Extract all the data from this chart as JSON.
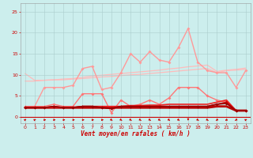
{
  "background_color": "#cceeed",
  "grid_color": "#aacccc",
  "xlabel": "Vent moyen/en rafales ( km/h )",
  "tick_color": "#cc0000",
  "yticks": [
    0,
    5,
    10,
    15,
    20,
    25
  ],
  "xticks": [
    0,
    1,
    2,
    3,
    4,
    5,
    6,
    7,
    8,
    9,
    10,
    11,
    12,
    13,
    14,
    15,
    16,
    17,
    18,
    19,
    20,
    21,
    22,
    23
  ],
  "xlim": [
    -0.5,
    23.5
  ],
  "ylim": [
    -1.5,
    27
  ],
  "series": [
    {
      "y": [
        10.3,
        8.7,
        8.7,
        8.8,
        8.8,
        9.0,
        9.1,
        9.3,
        9.5,
        9.6,
        9.8,
        10.0,
        10.1,
        10.3,
        10.5,
        10.7,
        10.9,
        11.1,
        11.3,
        11.5,
        10.5,
        11.0,
        11.1,
        11.3
      ],
      "color": "#ffbbbb",
      "linewidth": 0.9,
      "marker": null,
      "zorder": 1
    },
    {
      "y": [
        8.5,
        8.5,
        8.7,
        8.8,
        9.0,
        9.1,
        9.4,
        9.7,
        9.9,
        10.1,
        10.3,
        10.5,
        10.7,
        10.9,
        11.1,
        11.4,
        11.6,
        11.9,
        12.1,
        12.3,
        10.8,
        11.1,
        11.3,
        11.6
      ],
      "color": "#ffbbbb",
      "linewidth": 0.9,
      "marker": null,
      "zorder": 1
    },
    {
      "y": [
        2.5,
        2.5,
        7.0,
        7.0,
        7.0,
        7.5,
        11.5,
        12.0,
        6.5,
        7.0,
        10.5,
        15.0,
        13.0,
        15.5,
        13.5,
        13.0,
        16.5,
        21.0,
        13.0,
        11.0,
        10.5,
        10.5,
        7.0,
        11.0
      ],
      "color": "#ff9999",
      "linewidth": 1.0,
      "marker": "D",
      "markersize": 2.0,
      "zorder": 3
    },
    {
      "y": [
        2.5,
        2.5,
        2.5,
        3.0,
        2.5,
        2.5,
        5.5,
        5.5,
        5.5,
        1.0,
        4.0,
        2.5,
        3.0,
        4.0,
        3.0,
        4.5,
        7.0,
        7.0,
        7.0,
        5.0,
        4.0,
        3.5,
        1.5,
        1.5
      ],
      "color": "#ff7777",
      "linewidth": 1.0,
      "marker": "D",
      "markersize": 2.0,
      "zorder": 3
    },
    {
      "y": [
        2.2,
        2.2,
        2.2,
        2.5,
        2.2,
        2.2,
        2.5,
        2.5,
        2.2,
        2.0,
        2.5,
        2.5,
        2.5,
        2.5,
        2.5,
        2.5,
        2.5,
        2.5,
        2.5,
        2.5,
        3.0,
        3.5,
        1.5,
        1.5
      ],
      "color": "#cc0000",
      "linewidth": 1.2,
      "marker": "D",
      "markersize": 2.0,
      "zorder": 5
    },
    {
      "y": [
        2.2,
        2.2,
        2.2,
        2.5,
        2.2,
        2.2,
        2.5,
        2.5,
        2.2,
        2.0,
        2.5,
        2.5,
        2.5,
        2.5,
        2.5,
        2.5,
        2.5,
        2.5,
        2.5,
        2.5,
        3.0,
        3.2,
        1.5,
        1.5
      ],
      "color": "#990000",
      "linewidth": 1.2,
      "marker": "D",
      "markersize": 2.0,
      "zorder": 5
    },
    {
      "y": [
        2.2,
        2.2,
        2.2,
        2.2,
        2.2,
        2.2,
        2.2,
        2.2,
        2.2,
        2.2,
        2.2,
        2.2,
        2.2,
        2.2,
        2.2,
        2.2,
        2.2,
        2.2,
        2.2,
        2.2,
        2.5,
        2.5,
        1.5,
        1.5
      ],
      "color": "#bb0000",
      "linewidth": 2.0,
      "marker": null,
      "zorder": 4
    },
    {
      "y": [
        2.2,
        2.2,
        2.2,
        2.3,
        2.3,
        2.3,
        2.5,
        2.5,
        2.5,
        2.5,
        2.5,
        2.7,
        2.7,
        2.8,
        2.8,
        3.0,
        3.0,
        3.0,
        3.0,
        3.0,
        3.5,
        4.0,
        1.5,
        1.5
      ],
      "color": "#ee2222",
      "linewidth": 1.2,
      "marker": null,
      "zorder": 4
    }
  ],
  "arrow_color": "#cc0000",
  "bottom_line_y": 0.0
}
